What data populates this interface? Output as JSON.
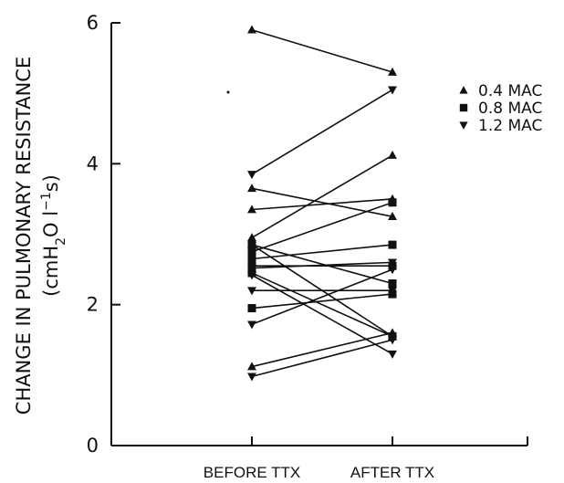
{
  "chart_data": {
    "type": "line",
    "categories": [
      "BEFORE TTX",
      "AFTER TTX"
    ],
    "ylabel_line1": "CHANGE IN PULMONARY RESISTANCE",
    "ylabel_line2_parts": [
      "(cmH",
      "2",
      "O l",
      "−1",
      "s)"
    ],
    "ylim": [
      0,
      6
    ],
    "yticks": [
      "0",
      "2",
      "4",
      "6"
    ],
    "legend": [
      {
        "marker": "triangle-up",
        "label": "0.4 MAC"
      },
      {
        "marker": "square",
        "label": "0.8 MAC"
      },
      {
        "marker": "triangle-down",
        "label": "1.2 MAC"
      }
    ],
    "series": [
      {
        "marker": "triangle-up",
        "values": [
          5.9,
          5.3
        ]
      },
      {
        "marker": "triangle-up",
        "values": [
          3.65,
          3.25
        ]
      },
      {
        "marker": "triangle-up",
        "values": [
          3.35,
          3.5
        ]
      },
      {
        "marker": "triangle-up",
        "values": [
          2.95,
          4.12
        ]
      },
      {
        "marker": "triangle-up",
        "values": [
          2.85,
          1.55
        ]
      },
      {
        "marker": "triangle-up",
        "values": [
          1.12,
          1.6
        ]
      },
      {
        "marker": "square",
        "values": [
          2.85,
          2.3
        ]
      },
      {
        "marker": "square",
        "values": [
          2.75,
          3.45
        ]
      },
      {
        "marker": "square",
        "values": [
          2.65,
          2.85
        ]
      },
      {
        "marker": "square",
        "values": [
          2.55,
          2.55
        ]
      },
      {
        "marker": "square",
        "values": [
          2.45,
          1.55
        ]
      },
      {
        "marker": "square",
        "values": [
          1.95,
          2.15
        ]
      },
      {
        "marker": "triangle-down",
        "values": [
          3.85,
          5.05
        ]
      },
      {
        "marker": "triangle-down",
        "values": [
          2.52,
          2.6
        ]
      },
      {
        "marker": "triangle-down",
        "values": [
          2.42,
          1.3
        ]
      },
      {
        "marker": "triangle-down",
        "values": [
          2.2,
          2.2
        ]
      },
      {
        "marker": "triangle-down",
        "values": [
          1.72,
          2.5
        ]
      },
      {
        "marker": "triangle-down",
        "values": [
          0.98,
          1.5
        ]
      }
    ]
  }
}
